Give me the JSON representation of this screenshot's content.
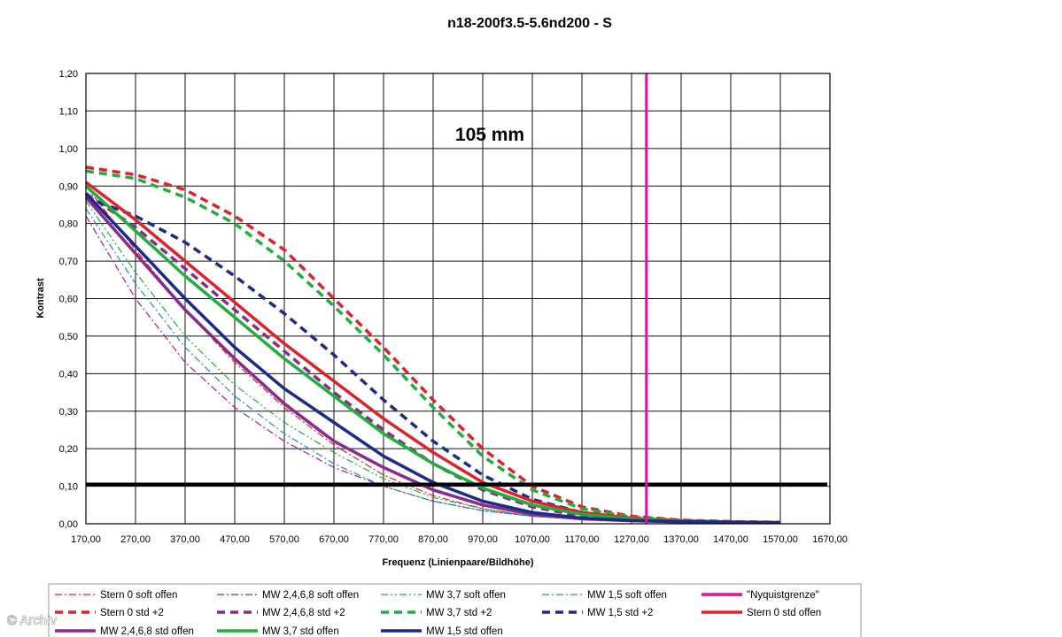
{
  "chart_data": {
    "type": "line",
    "title": "n18-200f3.5-5.6nd200 - S",
    "annotation": "105 mm",
    "xlabel": "Frequenz (Linienpaare/Bildhöhe)",
    "ylabel": "Kontrast",
    "xlim": [
      170,
      1670
    ],
    "ylim": [
      0,
      1.2
    ],
    "x_ticks": [
      "170,00",
      "270,00",
      "370,00",
      "470,00",
      "570,00",
      "670,00",
      "770,00",
      "870,00",
      "970,00",
      "1070,00",
      "1170,00",
      "1270,00",
      "1370,00",
      "1470,00",
      "1570,00",
      "1670,00"
    ],
    "y_ticks": [
      "0,00",
      "0,10",
      "0,20",
      "0,30",
      "0,40",
      "0,50",
      "0,60",
      "0,70",
      "0,80",
      "0,90",
      "1,00",
      "1,10",
      "1,20"
    ],
    "grid": true,
    "legend_position": "bottom",
    "reference_lines": [
      {
        "orientation": "horizontal",
        "value": 0.105,
        "color": "#000000"
      },
      {
        "orientation": "vertical",
        "value": 1300,
        "color": "#e0119a",
        "name": "\"Nyquistgrenze\""
      }
    ],
    "series": [
      {
        "name": "Stern 0 soft offen",
        "color": "#e0202a",
        "style": "dashdot",
        "width": 1.2,
        "points": [
          [
            170,
            0.9
          ],
          [
            270,
            0.73
          ],
          [
            370,
            0.57
          ],
          [
            470,
            0.43
          ],
          [
            570,
            0.31
          ],
          [
            670,
            0.21
          ],
          [
            770,
            0.13
          ],
          [
            870,
            0.075
          ],
          [
            970,
            0.04
          ],
          [
            1070,
            0.02
          ],
          [
            1170,
            0.012
          ],
          [
            1270,
            0.008
          ],
          [
            1370,
            0.006
          ],
          [
            1470,
            0.004
          ],
          [
            1570,
            0.003
          ]
        ]
      },
      {
        "name": "MW 2,4,6,8 soft offen",
        "color": "#a01c98",
        "style": "dashdot",
        "width": 1.2,
        "points": [
          [
            170,
            0.82
          ],
          [
            270,
            0.6
          ],
          [
            370,
            0.43
          ],
          [
            470,
            0.31
          ],
          [
            570,
            0.22
          ],
          [
            670,
            0.15
          ],
          [
            770,
            0.1
          ],
          [
            870,
            0.06
          ],
          [
            970,
            0.035
          ],
          [
            1070,
            0.02
          ],
          [
            1170,
            0.012
          ],
          [
            1270,
            0.008
          ],
          [
            1370,
            0.006
          ],
          [
            1470,
            0.004
          ],
          [
            1570,
            0.003
          ]
        ]
      },
      {
        "name": "MW 3,7 soft offen",
        "color": "#1fae3c",
        "style": "dashdotdot",
        "width": 1.2,
        "points": [
          [
            170,
            0.86
          ],
          [
            270,
            0.67
          ],
          [
            370,
            0.5
          ],
          [
            470,
            0.37
          ],
          [
            570,
            0.27
          ],
          [
            670,
            0.19
          ],
          [
            770,
            0.12
          ],
          [
            870,
            0.07
          ],
          [
            970,
            0.04
          ],
          [
            1070,
            0.02
          ],
          [
            1170,
            0.012
          ],
          [
            1270,
            0.008
          ],
          [
            1370,
            0.006
          ],
          [
            1470,
            0.004
          ],
          [
            1570,
            0.003
          ]
        ]
      },
      {
        "name": "MW 1,5 soft offen",
        "color": "#1f8fbf",
        "style": "dashdot",
        "width": 1.2,
        "points": [
          [
            170,
            0.84
          ],
          [
            270,
            0.64
          ],
          [
            370,
            0.47
          ],
          [
            470,
            0.34
          ],
          [
            570,
            0.24
          ],
          [
            670,
            0.16
          ],
          [
            770,
            0.1
          ],
          [
            870,
            0.06
          ],
          [
            970,
            0.035
          ],
          [
            1070,
            0.02
          ],
          [
            1170,
            0.012
          ],
          [
            1270,
            0.008
          ],
          [
            1370,
            0.006
          ],
          [
            1470,
            0.004
          ],
          [
            1570,
            0.003
          ]
        ]
      },
      {
        "name": "Stern 0 std +2",
        "color": "#e0202a",
        "style": "dash",
        "width": 3.5,
        "points": [
          [
            170,
            0.95
          ],
          [
            270,
            0.93
          ],
          [
            370,
            0.89
          ],
          [
            470,
            0.82
          ],
          [
            570,
            0.73
          ],
          [
            670,
            0.6
          ],
          [
            770,
            0.47
          ],
          [
            870,
            0.33
          ],
          [
            970,
            0.2
          ],
          [
            1070,
            0.1
          ],
          [
            1170,
            0.045
          ],
          [
            1270,
            0.02
          ],
          [
            1370,
            0.01
          ],
          [
            1470,
            0.006
          ],
          [
            1570,
            0.004
          ]
        ]
      },
      {
        "name": "MW 2,4,6,8 std +2",
        "color": "#8a2a8a",
        "style": "dash",
        "width": 3.5,
        "points": [
          [
            170,
            0.88
          ],
          [
            270,
            0.79
          ],
          [
            370,
            0.68
          ],
          [
            470,
            0.57
          ],
          [
            570,
            0.46
          ],
          [
            670,
            0.35
          ],
          [
            770,
            0.25
          ],
          [
            870,
            0.16
          ],
          [
            970,
            0.09
          ],
          [
            1070,
            0.045
          ],
          [
            1170,
            0.02
          ],
          [
            1270,
            0.01
          ],
          [
            1370,
            0.006
          ],
          [
            1470,
            0.004
          ],
          [
            1570,
            0.003
          ]
        ]
      },
      {
        "name": "MW 3,7 std +2",
        "color": "#1fae3c",
        "style": "dash",
        "width": 3.5,
        "points": [
          [
            170,
            0.94
          ],
          [
            270,
            0.92
          ],
          [
            370,
            0.87
          ],
          [
            470,
            0.8
          ],
          [
            570,
            0.7
          ],
          [
            670,
            0.58
          ],
          [
            770,
            0.45
          ],
          [
            870,
            0.31
          ],
          [
            970,
            0.18
          ],
          [
            1070,
            0.09
          ],
          [
            1170,
            0.04
          ],
          [
            1270,
            0.018
          ],
          [
            1370,
            0.009
          ],
          [
            1470,
            0.005
          ],
          [
            1570,
            0.003
          ]
        ]
      },
      {
        "name": "MW 1,5 std +2",
        "color": "#1c2a8a",
        "style": "dash",
        "width": 3.5,
        "points": [
          [
            170,
            0.87
          ],
          [
            270,
            0.82
          ],
          [
            370,
            0.75
          ],
          [
            470,
            0.66
          ],
          [
            570,
            0.56
          ],
          [
            670,
            0.45
          ],
          [
            770,
            0.33
          ],
          [
            870,
            0.22
          ],
          [
            970,
            0.13
          ],
          [
            1070,
            0.065
          ],
          [
            1170,
            0.03
          ],
          [
            1270,
            0.013
          ],
          [
            1370,
            0.007
          ],
          [
            1470,
            0.004
          ],
          [
            1570,
            0.003
          ]
        ]
      },
      {
        "name": "Stern 0 std offen",
        "color": "#e0202a",
        "style": "solid",
        "width": 3.5,
        "points": [
          [
            170,
            0.91
          ],
          [
            270,
            0.81
          ],
          [
            370,
            0.7
          ],
          [
            470,
            0.59
          ],
          [
            570,
            0.48
          ],
          [
            670,
            0.38
          ],
          [
            770,
            0.28
          ],
          [
            870,
            0.19
          ],
          [
            970,
            0.11
          ],
          [
            1070,
            0.06
          ],
          [
            1170,
            0.03
          ],
          [
            1270,
            0.015
          ],
          [
            1370,
            0.008
          ],
          [
            1470,
            0.005
          ],
          [
            1570,
            0.003
          ]
        ]
      },
      {
        "name": "MW 2,4,6,8 std offen",
        "color": "#8a2a8a",
        "style": "solid",
        "width": 3.5,
        "points": [
          [
            170,
            0.87
          ],
          [
            270,
            0.72
          ],
          [
            370,
            0.57
          ],
          [
            470,
            0.44
          ],
          [
            570,
            0.32
          ],
          [
            670,
            0.22
          ],
          [
            770,
            0.15
          ],
          [
            870,
            0.09
          ],
          [
            970,
            0.05
          ],
          [
            1070,
            0.025
          ],
          [
            1170,
            0.013
          ],
          [
            1270,
            0.008
          ],
          [
            1370,
            0.005
          ],
          [
            1470,
            0.004
          ],
          [
            1570,
            0.003
          ]
        ]
      },
      {
        "name": "MW 3,7 std offen",
        "color": "#1fae3c",
        "style": "solid",
        "width": 3.5,
        "points": [
          [
            170,
            0.9
          ],
          [
            270,
            0.78
          ],
          [
            370,
            0.66
          ],
          [
            470,
            0.55
          ],
          [
            570,
            0.44
          ],
          [
            670,
            0.34
          ],
          [
            770,
            0.24
          ],
          [
            870,
            0.16
          ],
          [
            970,
            0.095
          ],
          [
            1070,
            0.05
          ],
          [
            1170,
            0.025
          ],
          [
            1270,
            0.013
          ],
          [
            1370,
            0.007
          ],
          [
            1470,
            0.004
          ],
          [
            1570,
            0.003
          ]
        ]
      },
      {
        "name": "MW 1,5 std offen",
        "color": "#1c2a8a",
        "style": "solid",
        "width": 3.5,
        "points": [
          [
            170,
            0.88
          ],
          [
            270,
            0.74
          ],
          [
            370,
            0.6
          ],
          [
            470,
            0.47
          ],
          [
            570,
            0.36
          ],
          [
            670,
            0.27
          ],
          [
            770,
            0.18
          ],
          [
            870,
            0.11
          ],
          [
            970,
            0.06
          ],
          [
            1070,
            0.03
          ],
          [
            1170,
            0.015
          ],
          [
            1270,
            0.009
          ],
          [
            1370,
            0.006
          ],
          [
            1470,
            0.004
          ],
          [
            1570,
            0.003
          ]
        ]
      }
    ]
  },
  "copyright": "© Archiv"
}
